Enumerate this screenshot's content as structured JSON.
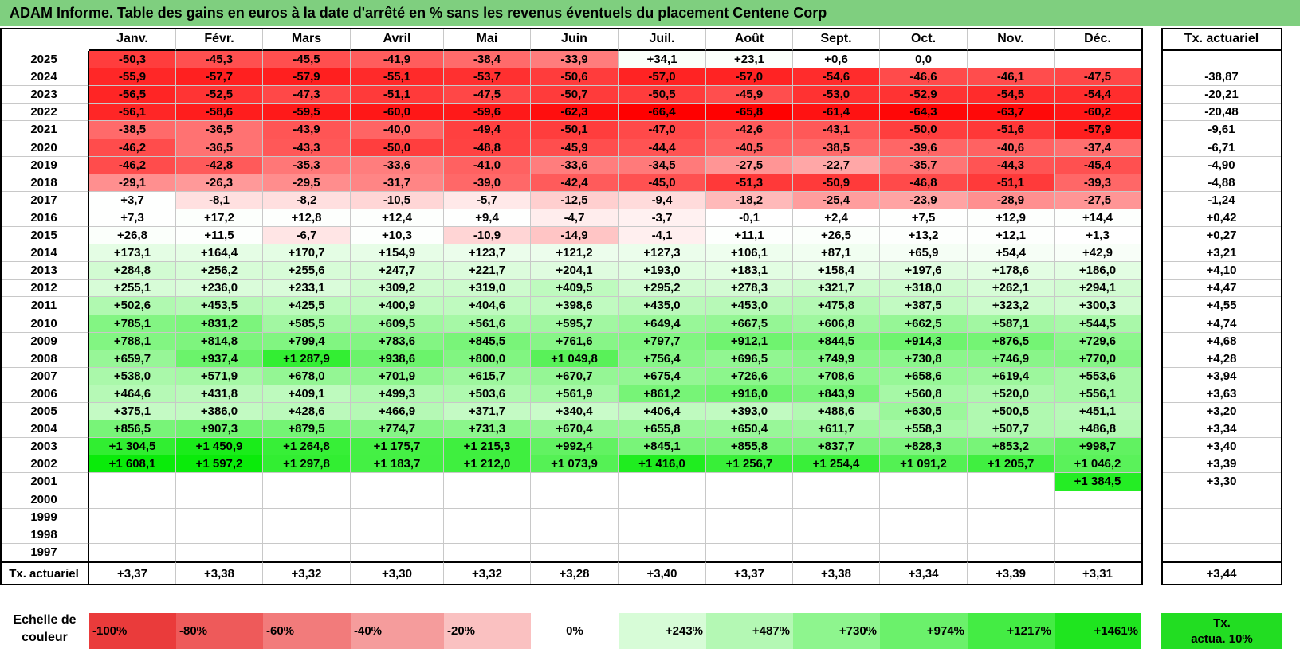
{
  "chart_data": {
    "type": "table",
    "title": "ADAM Informe. Table des gains en euros à la date d'arrêté en % sans les revenus éventuels du placement Centene Corp",
    "columns": [
      "Janv.",
      "Févr.",
      "Mars",
      "Avril",
      "Mai",
      "Juin",
      "Juil.",
      "Août",
      "Sept.",
      "Oct.",
      "Nov.",
      "Déc."
    ],
    "rate_header": "Tx. actuariel",
    "rows": [
      {
        "year": "2025",
        "values": [
          "-50,3",
          "-45,3",
          "-45,5",
          "-41,9",
          "-38,4",
          "-33,9",
          "+34,1",
          "+23,1",
          "+0,6",
          "0,0",
          "",
          ""
        ],
        "rate": ""
      },
      {
        "year": "2024",
        "values": [
          "-55,9",
          "-57,7",
          "-57,9",
          "-55,1",
          "-53,7",
          "-50,6",
          "-57,0",
          "-57,0",
          "-54,6",
          "-46,6",
          "-46,1",
          "-47,5"
        ],
        "rate": "-38,87"
      },
      {
        "year": "2023",
        "values": [
          "-56,5",
          "-52,5",
          "-47,3",
          "-51,1",
          "-47,5",
          "-50,7",
          "-50,5",
          "-45,9",
          "-53,0",
          "-52,9",
          "-54,5",
          "-54,4"
        ],
        "rate": "-20,21"
      },
      {
        "year": "2022",
        "values": [
          "-56,1",
          "-58,6",
          "-59,5",
          "-60,0",
          "-59,6",
          "-62,3",
          "-66,4",
          "-65,8",
          "-61,4",
          "-64,3",
          "-63,7",
          "-60,2"
        ],
        "rate": "-20,48"
      },
      {
        "year": "2021",
        "values": [
          "-38,5",
          "-36,5",
          "-43,9",
          "-40,0",
          "-49,4",
          "-50,1",
          "-47,0",
          "-42,6",
          "-43,1",
          "-50,0",
          "-51,6",
          "-57,9"
        ],
        "rate": "-9,61"
      },
      {
        "year": "2020",
        "values": [
          "-46,2",
          "-36,5",
          "-43,3",
          "-50,0",
          "-48,8",
          "-45,9",
          "-44,4",
          "-40,5",
          "-38,5",
          "-39,6",
          "-40,6",
          "-37,4"
        ],
        "rate": "-6,71"
      },
      {
        "year": "2019",
        "values": [
          "-46,2",
          "-42,8",
          "-35,3",
          "-33,6",
          "-41,0",
          "-33,6",
          "-34,5",
          "-27,5",
          "-22,7",
          "-35,7",
          "-44,3",
          "-45,4"
        ],
        "rate": "-4,90"
      },
      {
        "year": "2018",
        "values": [
          "-29,1",
          "-26,3",
          "-29,5",
          "-31,7",
          "-39,0",
          "-42,4",
          "-45,0",
          "-51,3",
          "-50,9",
          "-46,8",
          "-51,1",
          "-39,3"
        ],
        "rate": "-4,88"
      },
      {
        "year": "2017",
        "values": [
          "+3,7",
          "-8,1",
          "-8,2",
          "-10,5",
          "-5,7",
          "-12,5",
          "-9,4",
          "-18,2",
          "-25,4",
          "-23,9",
          "-28,9",
          "-27,5"
        ],
        "rate": "-1,24"
      },
      {
        "year": "2016",
        "values": [
          "+7,3",
          "+17,2",
          "+12,8",
          "+12,4",
          "+9,4",
          "-4,7",
          "-3,7",
          "-0,1",
          "+2,4",
          "+7,5",
          "+12,9",
          "+14,4"
        ],
        "rate": "+0,42"
      },
      {
        "year": "2015",
        "values": [
          "+26,8",
          "+11,5",
          "-6,7",
          "+10,3",
          "-10,9",
          "-14,9",
          "-4,1",
          "+11,1",
          "+26,5",
          "+13,2",
          "+12,1",
          "+1,3"
        ],
        "rate": "+0,27"
      },
      {
        "year": "2014",
        "values": [
          "+173,1",
          "+164,4",
          "+170,7",
          "+154,9",
          "+123,7",
          "+121,2",
          "+127,3",
          "+106,1",
          "+87,1",
          "+65,9",
          "+54,4",
          "+42,9"
        ],
        "rate": "+3,21"
      },
      {
        "year": "2013",
        "values": [
          "+284,8",
          "+256,2",
          "+255,6",
          "+247,7",
          "+221,7",
          "+204,1",
          "+193,0",
          "+183,1",
          "+158,4",
          "+197,6",
          "+178,6",
          "+186,0"
        ],
        "rate": "+4,10"
      },
      {
        "year": "2012",
        "values": [
          "+255,1",
          "+236,0",
          "+233,1",
          "+309,2",
          "+319,0",
          "+409,5",
          "+295,2",
          "+278,3",
          "+321,7",
          "+318,0",
          "+262,1",
          "+294,1"
        ],
        "rate": "+4,47"
      },
      {
        "year": "2011",
        "values": [
          "+502,6",
          "+453,5",
          "+425,5",
          "+400,9",
          "+404,6",
          "+398,6",
          "+435,0",
          "+453,0",
          "+475,8",
          "+387,5",
          "+323,2",
          "+300,3"
        ],
        "rate": "+4,55"
      },
      {
        "year": "2010",
        "values": [
          "+785,1",
          "+831,2",
          "+585,5",
          "+609,5",
          "+561,6",
          "+595,7",
          "+649,4",
          "+667,5",
          "+606,8",
          "+662,5",
          "+587,1",
          "+544,5"
        ],
        "rate": "+4,74"
      },
      {
        "year": "2009",
        "values": [
          "+788,1",
          "+814,8",
          "+799,4",
          "+783,6",
          "+845,5",
          "+761,6",
          "+797,7",
          "+912,1",
          "+844,5",
          "+914,3",
          "+876,5",
          "+729,6"
        ],
        "rate": "+4,68"
      },
      {
        "year": "2008",
        "values": [
          "+659,7",
          "+937,4",
          "+1 287,9",
          "+938,6",
          "+800,0",
          "+1 049,8",
          "+756,4",
          "+696,5",
          "+749,9",
          "+730,8",
          "+746,9",
          "+770,0"
        ],
        "rate": "+4,28"
      },
      {
        "year": "2007",
        "values": [
          "+538,0",
          "+571,9",
          "+678,0",
          "+701,9",
          "+615,7",
          "+670,7",
          "+675,4",
          "+726,6",
          "+708,6",
          "+658,6",
          "+619,4",
          "+553,6"
        ],
        "rate": "+3,94"
      },
      {
        "year": "2006",
        "values": [
          "+464,6",
          "+431,8",
          "+409,1",
          "+499,3",
          "+503,6",
          "+561,9",
          "+861,2",
          "+916,0",
          "+843,9",
          "+560,8",
          "+520,0",
          "+556,1"
        ],
        "rate": "+3,63"
      },
      {
        "year": "2005",
        "values": [
          "+375,1",
          "+386,0",
          "+428,6",
          "+466,9",
          "+371,7",
          "+340,4",
          "+406,4",
          "+393,0",
          "+488,6",
          "+630,5",
          "+500,5",
          "+451,1"
        ],
        "rate": "+3,20"
      },
      {
        "year": "2004",
        "values": [
          "+856,5",
          "+907,3",
          "+879,5",
          "+774,7",
          "+731,3",
          "+670,4",
          "+655,8",
          "+650,4",
          "+611,7",
          "+558,3",
          "+507,7",
          "+486,8"
        ],
        "rate": "+3,34"
      },
      {
        "year": "2003",
        "values": [
          "+1 304,5",
          "+1 450,9",
          "+1 264,8",
          "+1 175,7",
          "+1 215,3",
          "+992,4",
          "+845,1",
          "+855,8",
          "+837,7",
          "+828,3",
          "+853,2",
          "+998,7"
        ],
        "rate": "+3,40"
      },
      {
        "year": "2002",
        "values": [
          "+1 608,1",
          "+1 597,2",
          "+1 297,8",
          "+1 183,7",
          "+1 212,0",
          "+1 073,9",
          "+1 416,0",
          "+1 256,7",
          "+1 254,4",
          "+1 091,2",
          "+1 205,7",
          "+1 046,2"
        ],
        "rate": "+3,39"
      },
      {
        "year": "2001",
        "values": [
          "",
          "",
          "",
          "",
          "",
          "",
          "",
          "",
          "",
          "",
          "",
          "+1 384,5"
        ],
        "rate": "+3,30"
      },
      {
        "year": "2000",
        "values": [
          "",
          "",
          "",
          "",
          "",
          "",
          "",
          "",
          "",
          "",
          "",
          ""
        ],
        "rate": ""
      },
      {
        "year": "1999",
        "values": [
          "",
          "",
          "",
          "",
          "",
          "",
          "",
          "",
          "",
          "",
          "",
          ""
        ],
        "rate": ""
      },
      {
        "year": "1998",
        "values": [
          "",
          "",
          "",
          "",
          "",
          "",
          "",
          "",
          "",
          "",
          "",
          ""
        ],
        "rate": ""
      },
      {
        "year": "1997",
        "values": [
          "",
          "",
          "",
          "",
          "",
          "",
          "",
          "",
          "",
          "",
          "",
          ""
        ],
        "rate": ""
      }
    ],
    "footer": {
      "label": "Tx. actuariel",
      "values": [
        "+3,37",
        "+3,38",
        "+3,32",
        "+3,30",
        "+3,32",
        "+3,28",
        "+3,40",
        "+3,37",
        "+3,38",
        "+3,34",
        "+3,39",
        "+3,31"
      ],
      "total": "+3,44"
    },
    "legend": {
      "label_line1": "Echelle de",
      "label_line2": "couleur",
      "steps": [
        {
          "text": "-100%",
          "color": "#ea3b3b"
        },
        {
          "text": "-80%",
          "color": "#ee5a5a"
        },
        {
          "text": "-60%",
          "color": "#f27b7b"
        },
        {
          "text": "-40%",
          "color": "#f59c9c"
        },
        {
          "text": "-20%",
          "color": "#fac1c1"
        },
        {
          "text": "0%",
          "color": "#ffffff"
        },
        {
          "text": "+243%",
          "color": "#d7fcd7"
        },
        {
          "text": "+487%",
          "color": "#b4f8b4"
        },
        {
          "text": "+730%",
          "color": "#8ef58e"
        },
        {
          "text": "+974%",
          "color": "#6bf16b"
        },
        {
          "text": "+1217%",
          "color": "#44ec44"
        },
        {
          "text": "+1461%",
          "color": "#1fe51f"
        }
      ],
      "rate_box_line1": "Tx.",
      "rate_box_line2": "actua. 10%",
      "rate_box_color": "#22dd22"
    }
  }
}
